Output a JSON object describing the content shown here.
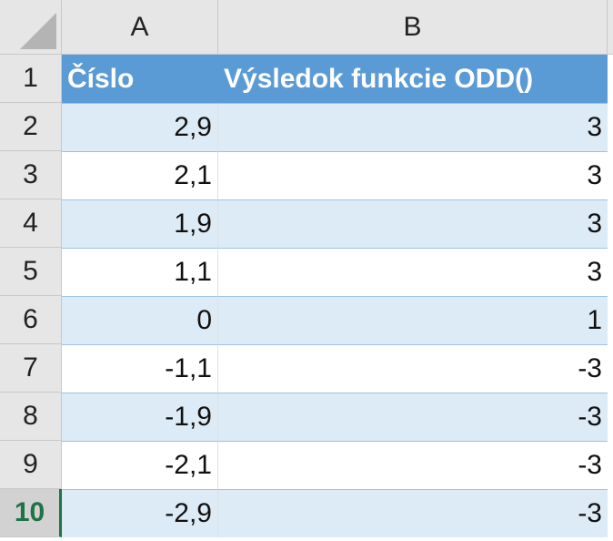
{
  "columns": [
    "A",
    "B"
  ],
  "row_numbers": [
    "1",
    "2",
    "3",
    "4",
    "5",
    "6",
    "7",
    "8",
    "9",
    "10"
  ],
  "table": {
    "header": [
      "Číslo",
      "Výsledok funkcie ODD()"
    ],
    "rows": [
      [
        "2,9",
        "3"
      ],
      [
        "2,1",
        "3"
      ],
      [
        "1,9",
        "3"
      ],
      [
        "1,1",
        "3"
      ],
      [
        "0",
        "1"
      ],
      [
        "-1,1",
        "-3"
      ],
      [
        "-1,9",
        "-3"
      ],
      [
        "-2,1",
        "-3"
      ],
      [
        "-2,9",
        "-3"
      ]
    ]
  },
  "selected_row": 10
}
